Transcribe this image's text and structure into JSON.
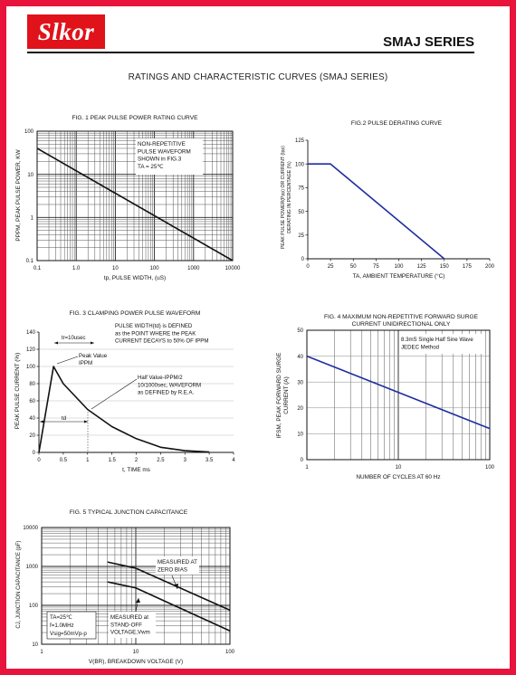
{
  "header": {
    "logo_text": "Slkor",
    "series": "SMAJ SERIES"
  },
  "page_title": "RATINGS AND CHARACTERISTIC CURVES (SMAJ SERIES)",
  "chart_data": [
    {
      "id": "fig1",
      "type": "line",
      "title": "FIG. 1 PEAK PULSE POWER RATING CURVE",
      "xlabel": "tp, PULSE WIDTH, (uS)",
      "ylabel": "PPPM, PEAK PULSE POWER, KW",
      "xscale": "log",
      "yscale": "log",
      "xlim": [
        0.1,
        10000
      ],
      "ylim": [
        0.1,
        100
      ],
      "xticks": [
        "0.1",
        "1.0",
        "10",
        "100",
        "1000",
        "10000"
      ],
      "yticks": [
        "100",
        "10",
        "1",
        "0.1"
      ],
      "annotation": [
        "NON-REPETITIVE",
        "PULSE WAVEFORM",
        "SHOWN in FIG.3",
        "TA = 25℃"
      ],
      "series": [
        {
          "x": [
            0.1,
            10000
          ],
          "y": [
            40,
            0.1
          ]
        }
      ]
    },
    {
      "id": "fig2",
      "type": "line",
      "title": "FIG.2 PULSE DERATING CURVE",
      "xlabel": "TA, AMBIENT TEMPERATURE (°C)",
      "ylabel": [
        "PEAK PULSE POWER(Ppp) OR CURRENT (Ipp)",
        "DERATING IN PERCENTAGE (%)"
      ],
      "xlim": [
        0,
        200
      ],
      "ylim": [
        0,
        125
      ],
      "xticks": [
        "0",
        "25",
        "50",
        "75",
        "100",
        "125",
        "150",
        "175",
        "200"
      ],
      "yticks": [
        "0",
        "25",
        "50",
        "75",
        "100",
        "125"
      ],
      "series": [
        {
          "x": [
            0,
            25,
            150
          ],
          "y": [
            100,
            100,
            0
          ]
        }
      ]
    },
    {
      "id": "fig3",
      "type": "line",
      "title": "FIG. 3 CLAMPING POWER PULSE WAVEFORM",
      "xlabel": "t, TIME ms",
      "ylabel": "PEAK PULSE CURRENT (%)",
      "xlim": [
        0,
        4
      ],
      "ylim": [
        0,
        140
      ],
      "xticks": [
        "0",
        "0.5",
        "1",
        "1.5",
        "2",
        "2.5",
        "3",
        "3.5",
        "4"
      ],
      "yticks": [
        "0",
        "20",
        "40",
        "60",
        "80",
        "100",
        "120",
        "140"
      ],
      "annotations": {
        "tr": "tr=10usec",
        "pulse_width": [
          "PULSE WIDTH(td) is DEFINED",
          "as the POINT WHERE the PEAK",
          "CURRENT DECAYS to 50% OF IPPM"
        ],
        "peak": [
          "Peak Value",
          "IPPM"
        ],
        "half": [
          "Half Value-IPPM/2",
          "10/1000sec, WAVEFORM",
          "as DEFINED by R.E.A."
        ],
        "td": "td"
      },
      "series": [
        {
          "x": [
            0,
            0.3,
            0.5,
            1.0,
            1.5,
            2.0,
            2.5,
            3.0,
            3.5
          ],
          "y": [
            0,
            100,
            80,
            50,
            30,
            16,
            6,
            2,
            0.5
          ]
        }
      ]
    },
    {
      "id": "fig4",
      "type": "line",
      "title": [
        "FIG. 4 MAXIMUM NON-REPETITIVE FORWARD SURGE",
        "CURRENT UNIDIRECTIONAL ONLY"
      ],
      "xlabel": "NUMBER OF CYCLES AT 60 Hz",
      "ylabel": [
        "IFSM, PEAK FORWARD SURGE",
        "CURRENT (A)"
      ],
      "xscale": "log",
      "xlim": [
        1,
        100
      ],
      "ylim": [
        0,
        50
      ],
      "xticks": [
        "1",
        "10",
        "100"
      ],
      "yticks": [
        "0",
        "10",
        "20",
        "30",
        "40",
        "50"
      ],
      "annotation": [
        "8.3mS Single Half Sine Wave",
        "JEDEC Method"
      ],
      "series": [
        {
          "x": [
            1,
            100
          ],
          "y": [
            40,
            12
          ]
        }
      ]
    },
    {
      "id": "fig5",
      "type": "line",
      "title": "FIG. 5 TYPICAL JUNCTION CAPACITANCE",
      "xlabel": "V(BR), BREAKDOWN VOLTAGE (V)",
      "ylabel": "CJ, JUNCTION CAPACITANCE (pF)",
      "xscale": "log",
      "yscale": "log",
      "xlim": [
        1,
        100
      ],
      "ylim": [
        10,
        10000
      ],
      "xticks": [
        "1",
        "10",
        "100"
      ],
      "yticks": [
        "10",
        "100",
        "1000",
        "10000"
      ],
      "annotations": {
        "zero_bias": [
          "MEASURED AT",
          "ZERO BIAS"
        ],
        "standoff": [
          "MEASURED at",
          "STAND-OFF",
          "VOLTAGE,Vwm"
        ],
        "conditions": [
          "TA=25℃",
          "f=1.0MHz",
          "Vsig=50mVp-p"
        ]
      },
      "series": [
        {
          "name": "MEASURED AT ZERO BIAS",
          "x": [
            5,
            10,
            100
          ],
          "y": [
            1300,
            900,
            75
          ]
        },
        {
          "name": "MEASURED at STAND-OFF VOLTAGE,Vwm",
          "x": [
            5,
            10,
            100
          ],
          "y": [
            400,
            280,
            22
          ]
        }
      ]
    }
  ]
}
